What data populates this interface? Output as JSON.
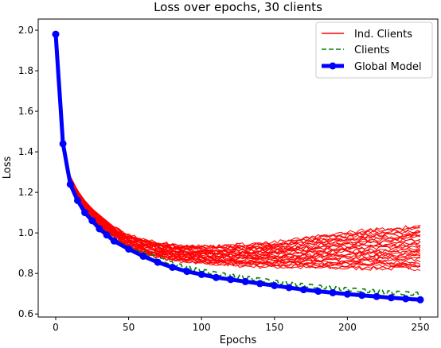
{
  "chart_data": {
    "type": "line",
    "title": "Loss over epochs, 30 clients",
    "xlabel": "Epochs",
    "ylabel": "Loss",
    "xlim": [
      -12,
      262
    ],
    "ylim": [
      0.585,
      2.055
    ],
    "xticks": [
      0,
      50,
      100,
      150,
      200,
      250
    ],
    "yticks": [
      0.6,
      0.8,
      1.0,
      1.2,
      1.4,
      1.6,
      1.8,
      2.0
    ],
    "ytick_labels": [
      "0.6",
      "0.8",
      "1.0",
      "1.2",
      "1.4",
      "1.6",
      "1.8",
      "2.0"
    ],
    "grid": false,
    "legend": {
      "position": "top-right",
      "entries": [
        {
          "label": "Ind. Clients",
          "color": "#ff0000",
          "style": "solid"
        },
        {
          "label": "Clients",
          "color": "#008000",
          "style": "dashed"
        },
        {
          "label": "Global Model",
          "color": "#0000ff",
          "style": "solid-marker"
        }
      ]
    },
    "series": [
      {
        "name": "Global Model",
        "color": "#0000ff",
        "x": [
          0,
          5,
          10,
          15,
          20,
          25,
          30,
          35,
          40,
          50,
          60,
          70,
          80,
          90,
          100,
          110,
          120,
          130,
          140,
          150,
          160,
          170,
          180,
          190,
          200,
          210,
          220,
          230,
          240,
          250
        ],
        "values": [
          1.98,
          1.44,
          1.24,
          1.16,
          1.1,
          1.06,
          1.02,
          0.99,
          0.96,
          0.92,
          0.885,
          0.855,
          0.83,
          0.81,
          0.795,
          0.78,
          0.77,
          0.76,
          0.75,
          0.74,
          0.73,
          0.72,
          0.712,
          0.705,
          0.698,
          0.692,
          0.686,
          0.68,
          0.675,
          0.67
        ]
      },
      {
        "name": "Clients",
        "color": "#008000",
        "x": [
          0,
          5,
          10,
          15,
          20,
          25,
          30,
          35,
          40,
          50,
          60,
          70,
          80,
          90,
          100,
          110,
          120,
          130,
          140,
          150,
          160,
          170,
          180,
          190,
          200,
          210,
          220,
          230,
          240,
          250
        ],
        "values": [
          1.97,
          1.44,
          1.25,
          1.17,
          1.11,
          1.07,
          1.03,
          1.0,
          0.97,
          0.93,
          0.9,
          0.87,
          0.845,
          0.825,
          0.81,
          0.795,
          0.785,
          0.775,
          0.765,
          0.755,
          0.745,
          0.738,
          0.73,
          0.724,
          0.718,
          0.712,
          0.707,
          0.702,
          0.698,
          0.694
        ]
      }
    ],
    "clients": {
      "name": "Ind. Clients",
      "color": "#ff0000",
      "count": 30,
      "x": [
        0,
        5,
        10,
        15,
        20,
        25,
        30,
        35,
        40,
        50,
        60,
        70,
        80,
        90,
        100,
        110,
        120,
        130,
        140,
        150,
        160,
        170,
        180,
        190,
        200,
        210,
        220,
        230,
        240,
        250
      ],
      "min_curve": [
        1.97,
        1.42,
        1.25,
        1.17,
        1.11,
        1.07,
        1.03,
        1.0,
        0.98,
        0.93,
        0.9,
        0.88,
        0.865,
        0.855,
        0.85,
        0.845,
        0.84,
        0.835,
        0.832,
        0.83,
        0.828,
        0.826,
        0.825,
        0.823,
        0.822,
        0.822,
        0.821,
        0.82,
        0.82,
        0.82
      ],
      "max_curve": [
        1.98,
        1.44,
        1.28,
        1.21,
        1.16,
        1.12,
        1.09,
        1.06,
        1.03,
        0.99,
        0.97,
        0.955,
        0.945,
        0.94,
        0.935,
        0.935,
        0.94,
        0.945,
        0.95,
        0.955,
        0.965,
        0.975,
        0.985,
        0.995,
        1.005,
        1.015,
        1.02,
        1.025,
        1.03,
        1.04
      ]
    }
  }
}
